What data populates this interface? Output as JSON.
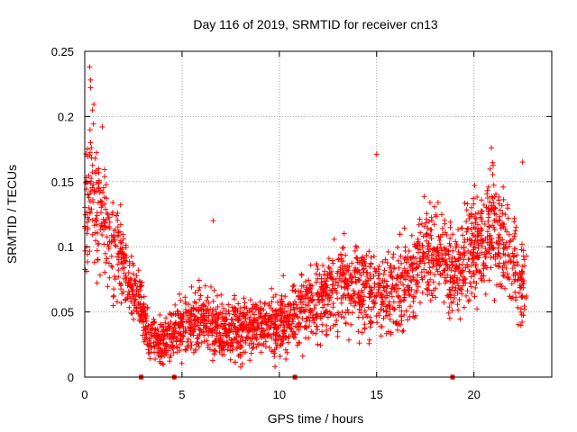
{
  "chart_data": {
    "type": "scatter",
    "title": "Day 116 of 2019, SRMTID for receiver cn13",
    "xlabel": "GPS time / hours",
    "ylabel": "SRMTID / TECUs",
    "xlim": [
      0,
      24
    ],
    "ylim": [
      0,
      0.25
    ],
    "xticks": [
      0,
      5,
      10,
      15,
      20
    ],
    "xtick_labels": [
      "0",
      "5",
      "10",
      "15",
      "20"
    ],
    "yticks": [
      0,
      0.05,
      0.1,
      0.15,
      0.2,
      0.25
    ],
    "ytick_labels": [
      "0",
      "0.05",
      "0.1",
      "0.15",
      "0.2",
      "0.25"
    ],
    "grid": true,
    "marker": "+",
    "color": "#ff0000",
    "series": [
      {
        "name": "SRMTID",
        "trend": [
          {
            "x": 0.0,
            "mean": 0.115,
            "spread": 0.035
          },
          {
            "x": 0.3,
            "mean": 0.15,
            "spread": 0.045
          },
          {
            "x": 0.7,
            "mean": 0.13,
            "spread": 0.04
          },
          {
            "x": 1.2,
            "mean": 0.11,
            "spread": 0.04
          },
          {
            "x": 1.7,
            "mean": 0.1,
            "spread": 0.035
          },
          {
            "x": 2.2,
            "mean": 0.075,
            "spread": 0.02
          },
          {
            "x": 2.8,
            "mean": 0.06,
            "spread": 0.02
          },
          {
            "x": 3.3,
            "mean": 0.032,
            "spread": 0.015
          },
          {
            "x": 4.0,
            "mean": 0.027,
            "spread": 0.015
          },
          {
            "x": 5.0,
            "mean": 0.04,
            "spread": 0.02
          },
          {
            "x": 6.0,
            "mean": 0.045,
            "spread": 0.022
          },
          {
            "x": 7.0,
            "mean": 0.035,
            "spread": 0.02
          },
          {
            "x": 8.0,
            "mean": 0.035,
            "spread": 0.02
          },
          {
            "x": 9.0,
            "mean": 0.038,
            "spread": 0.02
          },
          {
            "x": 10.0,
            "mean": 0.04,
            "spread": 0.02
          },
          {
            "x": 11.0,
            "mean": 0.05,
            "spread": 0.022
          },
          {
            "x": 12.0,
            "mean": 0.06,
            "spread": 0.025
          },
          {
            "x": 13.0,
            "mean": 0.068,
            "spread": 0.025
          },
          {
            "x": 14.0,
            "mean": 0.072,
            "spread": 0.03
          },
          {
            "x": 15.0,
            "mean": 0.06,
            "spread": 0.03
          },
          {
            "x": 16.0,
            "mean": 0.065,
            "spread": 0.03
          },
          {
            "x": 17.0,
            "mean": 0.085,
            "spread": 0.03
          },
          {
            "x": 18.0,
            "mean": 0.095,
            "spread": 0.03
          },
          {
            "x": 19.0,
            "mean": 0.08,
            "spread": 0.03
          },
          {
            "x": 20.0,
            "mean": 0.1,
            "spread": 0.035
          },
          {
            "x": 21.0,
            "mean": 0.115,
            "spread": 0.035
          },
          {
            "x": 22.0,
            "mean": 0.09,
            "spread": 0.035
          },
          {
            "x": 22.7,
            "mean": 0.065,
            "spread": 0.03
          }
        ],
        "outliers": [
          {
            "x": 0.25,
            "y": 0.238
          },
          {
            "x": 0.3,
            "y": 0.228
          },
          {
            "x": 0.3,
            "y": 0.222
          },
          {
            "x": 0.4,
            "y": 0.205
          },
          {
            "x": 0.9,
            "y": 0.192
          },
          {
            "x": 2.9,
            "y": 0.0
          },
          {
            "x": 4.6,
            "y": 0.0
          },
          {
            "x": 6.6,
            "y": 0.12
          },
          {
            "x": 10.8,
            "y": 0.0
          },
          {
            "x": 15.0,
            "y": 0.171
          },
          {
            "x": 18.9,
            "y": 0.0
          },
          {
            "x": 20.9,
            "y": 0.176
          },
          {
            "x": 22.5,
            "y": 0.165
          }
        ]
      }
    ],
    "zero_markers_x": [
      2.9,
      4.6,
      10.8,
      18.9
    ]
  }
}
